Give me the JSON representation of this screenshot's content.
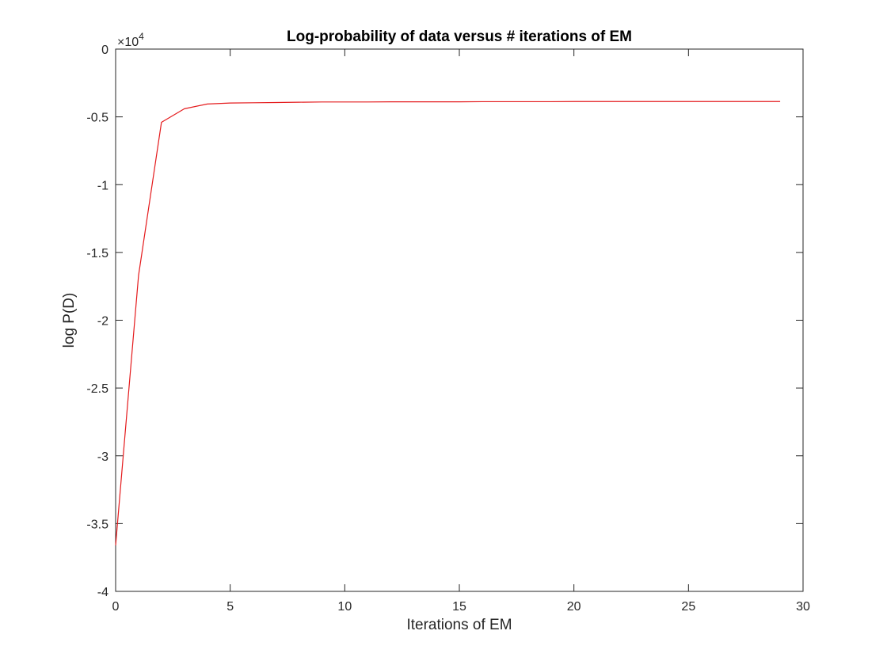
{
  "chart_data": {
    "type": "line",
    "title": "Log-probability of data versus # iterations of EM",
    "xlabel": "Iterations of EM",
    "ylabel": "log P(D)",
    "y_exponent_label": "×10",
    "y_exponent_power": "4",
    "xlim": [
      0,
      30
    ],
    "ylim": [
      -4,
      0
    ],
    "y_scale_factor": 10000,
    "x_ticks": [
      0,
      5,
      10,
      15,
      20,
      25,
      30
    ],
    "x_tick_labels": [
      "0",
      "5",
      "10",
      "15",
      "20",
      "25",
      "30"
    ],
    "y_ticks": [
      0,
      -0.5,
      -1,
      -1.5,
      -2,
      -2.5,
      -3,
      -3.5,
      -4
    ],
    "y_tick_labels": [
      "0",
      "-0.5",
      "-1",
      "-1.5",
      "-2",
      "-2.5",
      "-3",
      "-3.5",
      "-4"
    ],
    "grid": false,
    "box": true,
    "series": [
      {
        "color": "#e41a1c",
        "x": [
          0,
          1,
          2,
          3,
          4,
          5,
          6,
          7,
          8,
          9,
          10,
          11,
          12,
          13,
          14,
          15,
          16,
          17,
          18,
          19,
          20,
          21,
          22,
          23,
          24,
          25,
          26,
          27,
          28,
          29
        ],
        "y": [
          -3.66,
          -1.67,
          -0.54,
          -0.44,
          -0.405,
          -0.398,
          -0.396,
          -0.394,
          -0.392,
          -0.39,
          -0.39,
          -0.39,
          -0.389,
          -0.389,
          -0.389,
          -0.389,
          -0.388,
          -0.388,
          -0.388,
          -0.388,
          -0.387,
          -0.387,
          -0.387,
          -0.387,
          -0.387,
          -0.387,
          -0.387,
          -0.387,
          -0.387,
          -0.387
        ]
      }
    ]
  }
}
